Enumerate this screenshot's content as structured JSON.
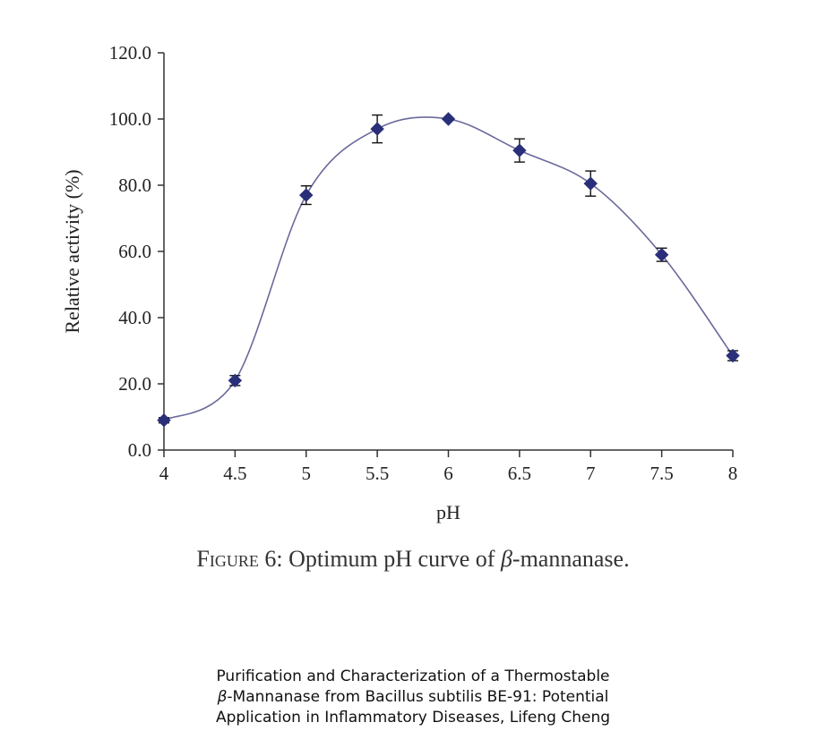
{
  "chart_data": {
    "type": "line",
    "xlabel": "pH",
    "ylabel": "Relative activity (%)",
    "x_ticks": [
      "4",
      "4.5",
      "5",
      "5.5",
      "6",
      "6.5",
      "7",
      "7.5",
      "8"
    ],
    "y_ticks": [
      "0.0",
      "20.0",
      "40.0",
      "60.0",
      "80.0",
      "100.0",
      "120.0"
    ],
    "xlim": [
      4,
      8
    ],
    "ylim": [
      0,
      120
    ],
    "grid": false,
    "series": [
      {
        "x": [
          4,
          4.5,
          5,
          5.5,
          6,
          6.5,
          7,
          7.5,
          8
        ],
        "values": [
          9,
          21,
          77,
          97,
          100,
          90.5,
          80.5,
          59,
          28.5
        ],
        "errors": [
          0.8,
          1.5,
          2.8,
          4.2,
          0,
          3.5,
          3.8,
          2.0,
          1.5
        ],
        "color": "#2a2f7a",
        "line_color": "#6a6a9c",
        "marker": "diamond"
      }
    ]
  },
  "caption": {
    "figure_label": "Figure 6:",
    "text_before": "Optimum pH curve of ",
    "symbol": "β",
    "text_after": "-mannanase."
  },
  "citation": {
    "line1": "Purification and Characterization of a Thermostable",
    "line2_symbol": "β",
    "line2_rest": "-Mannanase from Bacillus subtilis BE-91: Potential",
    "line3": "Application in Inflammatory Diseases, Lifeng Cheng"
  }
}
